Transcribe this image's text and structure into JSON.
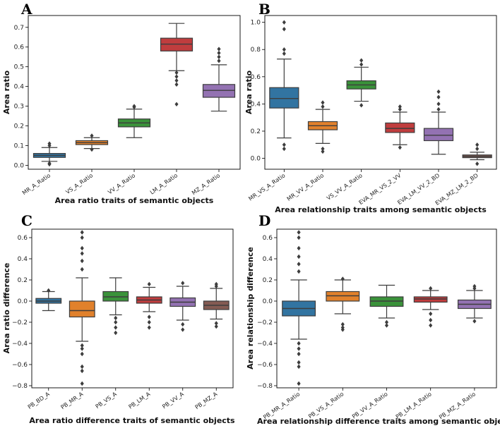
{
  "chart_data": [
    {
      "type": "box",
      "panel": "A",
      "title": "",
      "xlabel": "Area ratio traits of semantic objects",
      "ylabel": "Area ratio",
      "ylim": [
        -0.02,
        0.76
      ],
      "yticks": [
        0.0,
        0.1,
        0.2,
        0.3,
        0.4,
        0.5,
        0.6,
        0.7
      ],
      "ytick_labels": [
        "0.0",
        "0.1",
        "0.2",
        "0.3",
        "0.4",
        "0.5",
        "0.6",
        "0.7"
      ],
      "categories": [
        "MR_A_Ratio",
        "VS_A_Ratio",
        "VV_A_Ratio",
        "LM_A_Ratio",
        "MZ_A_Ratio"
      ],
      "boxes": [
        {
          "name": "MR_A_Ratio",
          "color": "#3274a1",
          "whislo": 0.02,
          "q1": 0.04,
          "med": 0.05,
          "q3": 0.06,
          "whishi": 0.09,
          "fliers": [
            0.005,
            0.01,
            0.1,
            0.11
          ]
        },
        {
          "name": "VS_A_Ratio",
          "color": "#e1812c",
          "whislo": 0.085,
          "q1": 0.105,
          "med": 0.115,
          "q3": 0.125,
          "whishi": 0.14,
          "fliers": [
            0.08,
            0.15
          ]
        },
        {
          "name": "VV_A_Ratio",
          "color": "#3a923a",
          "whislo": 0.14,
          "q1": 0.195,
          "med": 0.215,
          "q3": 0.235,
          "whishi": 0.285,
          "fliers": [
            0.295,
            0.3
          ]
        },
        {
          "name": "LM_A_Ratio",
          "color": "#c03d3e",
          "whislo": 0.48,
          "q1": 0.58,
          "med": 0.615,
          "q3": 0.645,
          "whishi": 0.72,
          "fliers": [
            0.31,
            0.41,
            0.43,
            0.45,
            0.47
          ]
        },
        {
          "name": "MZ_A_Ratio",
          "color": "#9372b2",
          "whislo": 0.275,
          "q1": 0.345,
          "med": 0.38,
          "q3": 0.41,
          "whishi": 0.51,
          "fliers": [
            0.53,
            0.55,
            0.57,
            0.59
          ]
        }
      ]
    },
    {
      "type": "box",
      "panel": "B",
      "title": "",
      "xlabel": "Area relationship traits among semantic objects",
      "ylabel": "Area ratio",
      "ylim": [
        -0.08,
        1.05
      ],
      "yticks": [
        0.0,
        0.2,
        0.4,
        0.6,
        0.8,
        1.0
      ],
      "ytick_labels": [
        "0.0",
        "0.2",
        "0.4",
        "0.6",
        "0.8",
        "1.0"
      ],
      "categories": [
        "MR_VS_A_Ratio",
        "MR_VV_A_Ratio",
        "VS_VV_A_Ratio",
        "EVA_MR_VS_2_VV",
        "EVA_LM_VV_2_BD",
        "EVA_MZ_LM_2_BD"
      ],
      "boxes": [
        {
          "name": "MR_VS_A_Ratio",
          "color": "#3274a1",
          "whislo": 0.15,
          "q1": 0.37,
          "med": 0.44,
          "q3": 0.52,
          "whishi": 0.73,
          "fliers": [
            0.07,
            0.1,
            0.77,
            0.8,
            0.95,
            1.0
          ]
        },
        {
          "name": "MR_VV_A_Ratio",
          "color": "#e1812c",
          "whislo": 0.11,
          "q1": 0.21,
          "med": 0.24,
          "q3": 0.27,
          "whishi": 0.36,
          "fliers": [
            0.05,
            0.07,
            0.38,
            0.41
          ]
        },
        {
          "name": "VS_VV_A_Ratio",
          "color": "#3a923a",
          "whislo": 0.42,
          "q1": 0.51,
          "med": 0.54,
          "q3": 0.57,
          "whishi": 0.67,
          "fliers": [
            0.39,
            0.69,
            0.72
          ]
        },
        {
          "name": "EVA_MR_VS_2_VV",
          "color": "#c03d3e",
          "whislo": 0.1,
          "q1": 0.19,
          "med": 0.22,
          "q3": 0.26,
          "whishi": 0.34,
          "fliers": [
            0.08,
            0.36,
            0.38
          ]
        },
        {
          "name": "EVA_LM_VV_2_BD",
          "color": "#9372b2",
          "whislo": 0.03,
          "q1": 0.13,
          "med": 0.17,
          "q3": 0.22,
          "whishi": 0.34,
          "fliers": [
            0.36,
            0.4,
            0.45,
            0.49
          ]
        },
        {
          "name": "EVA_MZ_LM_2_BD",
          "color": "#845b53",
          "whislo": -0.01,
          "q1": 0.005,
          "med": 0.015,
          "q3": 0.025,
          "whishi": 0.045,
          "fliers": [
            -0.04,
            0.07,
            0.1
          ]
        }
      ]
    },
    {
      "type": "box",
      "panel": "C",
      "title": "",
      "xlabel": "Area ratio difference traits of semantic objects",
      "ylabel": "Area ratio difference",
      "ylim": [
        -0.82,
        0.68
      ],
      "yticks": [
        -0.8,
        -0.6,
        -0.4,
        -0.2,
        0.0,
        0.2,
        0.4,
        0.6
      ],
      "ytick_labels": [
        "−0.8",
        "−0.6",
        "−0.4",
        "−0.2",
        "0.0",
        "0.2",
        "0.4",
        "0.6"
      ],
      "categories": [
        "PB_BD_A",
        "PB_MR_A",
        "PB_VS_A",
        "PB_LM_A",
        "PB_VV_A",
        "PB_MZ_A"
      ],
      "boxes": [
        {
          "name": "PB_BD_A",
          "color": "#3274a1",
          "whislo": -0.09,
          "q1": -0.02,
          "med": 0.0,
          "q3": 0.025,
          "whishi": 0.09,
          "fliers": [
            0.1
          ]
        },
        {
          "name": "PB_MR_A",
          "color": "#e1812c",
          "whislo": -0.38,
          "q1": -0.15,
          "med": -0.09,
          "q3": 0.0,
          "whishi": 0.22,
          "fliers": [
            -0.78,
            -0.66,
            -0.62,
            -0.5,
            -0.45,
            -0.42,
            0.3,
            0.38,
            0.45,
            0.5,
            0.6,
            0.65
          ]
        },
        {
          "name": "PB_VS_A",
          "color": "#3a923a",
          "whislo": -0.13,
          "q1": 0.0,
          "med": 0.04,
          "q3": 0.09,
          "whishi": 0.22,
          "fliers": [
            -0.16,
            -0.2,
            -0.25,
            -0.3
          ]
        },
        {
          "name": "PB_LM_A",
          "color": "#c03d3e",
          "whislo": -0.1,
          "q1": -0.02,
          "med": 0.01,
          "q3": 0.04,
          "whishi": 0.13,
          "fliers": [
            -0.15,
            -0.2,
            -0.25,
            0.16
          ]
        },
        {
          "name": "PB_VV_A",
          "color": "#9372b2",
          "whislo": -0.18,
          "q1": -0.05,
          "med": -0.01,
          "q3": 0.03,
          "whishi": 0.14,
          "fliers": [
            -0.22,
            -0.27,
            0.17
          ]
        },
        {
          "name": "PB_MZ_A",
          "color": "#845b53",
          "whislo": -0.17,
          "q1": -0.08,
          "med": -0.04,
          "q3": 0.0,
          "whishi": 0.12,
          "fliers": [
            -0.21,
            -0.24,
            0.14,
            0.16
          ]
        }
      ]
    },
    {
      "type": "box",
      "panel": "D",
      "title": "",
      "xlabel": "Area relationship difference traits among semantic objects",
      "ylabel": "Area relationship difference",
      "ylim": [
        -0.82,
        0.68
      ],
      "yticks": [
        -0.8,
        -0.6,
        -0.4,
        -0.2,
        0.0,
        0.2,
        0.4,
        0.6
      ],
      "ytick_labels": [
        "−0.8",
        "−0.6",
        "−0.4",
        "−0.2",
        "0.0",
        "0.2",
        "0.4",
        "0.6"
      ],
      "categories": [
        "PB_MR_A_Ratio",
        "PB_VS_A_Ratio",
        "PB_VV_A_Ratio",
        "PB_LM_A_Ratio",
        "PB_MZ_A_Ratio"
      ],
      "boxes": [
        {
          "name": "PB_MR_A_Ratio",
          "color": "#3274a1",
          "whislo": -0.36,
          "q1": -0.14,
          "med": -0.07,
          "q3": 0.0,
          "whishi": 0.2,
          "fliers": [
            -0.78,
            -0.62,
            -0.58,
            -0.5,
            -0.45,
            -0.4,
            0.28,
            0.35,
            0.42,
            0.5,
            0.6,
            0.65
          ]
        },
        {
          "name": "PB_VS_A_Ratio",
          "color": "#e1812c",
          "whislo": -0.12,
          "q1": 0.0,
          "med": 0.05,
          "q3": 0.09,
          "whishi": 0.2,
          "fliers": [
            -0.22,
            -0.25,
            -0.27,
            0.21
          ]
        },
        {
          "name": "PB_VV_A_Ratio",
          "color": "#3a923a",
          "whislo": -0.16,
          "q1": -0.05,
          "med": 0.0,
          "q3": 0.04,
          "whishi": 0.15,
          "fliers": [
            -0.2,
            -0.23
          ]
        },
        {
          "name": "PB_LM_A_Ratio",
          "color": "#c03d3e",
          "whislo": -0.08,
          "q1": -0.01,
          "med": 0.02,
          "q3": 0.04,
          "whishi": 0.1,
          "fliers": [
            -0.12,
            -0.18,
            -0.23,
            0.12
          ]
        },
        {
          "name": "PB_MZ_A_Ratio",
          "color": "#9372b2",
          "whislo": -0.16,
          "q1": -0.07,
          "med": -0.03,
          "q3": 0.01,
          "whishi": 0.1,
          "fliers": [
            -0.19,
            0.12,
            0.14
          ]
        }
      ]
    }
  ]
}
